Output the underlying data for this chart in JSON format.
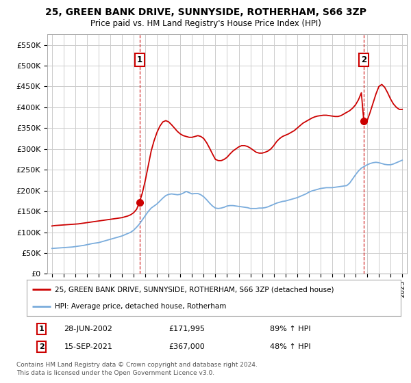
{
  "title": "25, GREEN BANK DRIVE, SUNNYSIDE, ROTHERHAM, S66 3ZP",
  "subtitle": "Price paid vs. HM Land Registry's House Price Index (HPI)",
  "ylabel_ticks": [
    "£0",
    "£50K",
    "£100K",
    "£150K",
    "£200K",
    "£250K",
    "£300K",
    "£350K",
    "£400K",
    "£450K",
    "£500K",
    "£550K"
  ],
  "ytick_values": [
    0,
    50000,
    100000,
    150000,
    200000,
    250000,
    300000,
    350000,
    400000,
    450000,
    500000,
    550000
  ],
  "ylim": [
    0,
    575000
  ],
  "xlim_start": 1994.6,
  "xlim_end": 2025.4,
  "legend_line1": "25, GREEN BANK DRIVE, SUNNYSIDE, ROTHERHAM, S66 3ZP (detached house)",
  "legend_line2": "HPI: Average price, detached house, Rotherham",
  "marker1_date": "28-JUN-2002",
  "marker1_price": "£171,995",
  "marker1_hpi": "89% ↑ HPI",
  "marker1_x": 2002.5,
  "marker1_y": 171995,
  "marker2_date": "15-SEP-2021",
  "marker2_price": "£367,000",
  "marker2_hpi": "48% ↑ HPI",
  "marker2_x": 2021.71,
  "marker2_y": 367000,
  "red_color": "#cc0000",
  "blue_color": "#7aacdc",
  "background_color": "#ffffff",
  "grid_color": "#cccccc",
  "footnote1": "Contains HM Land Registry data © Crown copyright and database right 2024.",
  "footnote2": "This data is licensed under the Open Government Licence v3.0.",
  "hpi_data": [
    [
      1995.0,
      61000
    ],
    [
      1995.25,
      61500
    ],
    [
      1995.5,
      62000
    ],
    [
      1995.75,
      62500
    ],
    [
      1996.0,
      63000
    ],
    [
      1996.25,
      63500
    ],
    [
      1996.5,
      64000
    ],
    [
      1996.75,
      64500
    ],
    [
      1997.0,
      65500
    ],
    [
      1997.25,
      66500
    ],
    [
      1997.5,
      67500
    ],
    [
      1997.75,
      68500
    ],
    [
      1998.0,
      70000
    ],
    [
      1998.25,
      71500
    ],
    [
      1998.5,
      73000
    ],
    [
      1998.75,
      74000
    ],
    [
      1999.0,
      75000
    ],
    [
      1999.25,
      77000
    ],
    [
      1999.5,
      79000
    ],
    [
      1999.75,
      81000
    ],
    [
      2000.0,
      83000
    ],
    [
      2000.25,
      85000
    ],
    [
      2000.5,
      87000
    ],
    [
      2000.75,
      89000
    ],
    [
      2001.0,
      91000
    ],
    [
      2001.25,
      94000
    ],
    [
      2001.5,
      97000
    ],
    [
      2001.75,
      100000
    ],
    [
      2002.0,
      105000
    ],
    [
      2002.25,
      112000
    ],
    [
      2002.5,
      120000
    ],
    [
      2002.75,
      130000
    ],
    [
      2003.0,
      140000
    ],
    [
      2003.25,
      150000
    ],
    [
      2003.5,
      158000
    ],
    [
      2003.75,
      163000
    ],
    [
      2004.0,
      168000
    ],
    [
      2004.25,
      175000
    ],
    [
      2004.5,
      182000
    ],
    [
      2004.75,
      188000
    ],
    [
      2005.0,
      191000
    ],
    [
      2005.25,
      192000
    ],
    [
      2005.5,
      191000
    ],
    [
      2005.75,
      190000
    ],
    [
      2006.0,
      191000
    ],
    [
      2006.25,
      194000
    ],
    [
      2006.5,
      198000
    ],
    [
      2006.75,
      195000
    ],
    [
      2007.0,
      192000
    ],
    [
      2007.25,
      193000
    ],
    [
      2007.5,
      193000
    ],
    [
      2007.75,
      190000
    ],
    [
      2008.0,
      185000
    ],
    [
      2008.25,
      178000
    ],
    [
      2008.5,
      170000
    ],
    [
      2008.75,
      163000
    ],
    [
      2009.0,
      158000
    ],
    [
      2009.25,
      157000
    ],
    [
      2009.5,
      158000
    ],
    [
      2009.75,
      160000
    ],
    [
      2010.0,
      163000
    ],
    [
      2010.25,
      164000
    ],
    [
      2010.5,
      164000
    ],
    [
      2010.75,
      163000
    ],
    [
      2011.0,
      162000
    ],
    [
      2011.25,
      161000
    ],
    [
      2011.5,
      160000
    ],
    [
      2011.75,
      159000
    ],
    [
      2012.0,
      157000
    ],
    [
      2012.25,
      157000
    ],
    [
      2012.5,
      157000
    ],
    [
      2012.75,
      158000
    ],
    [
      2013.0,
      158000
    ],
    [
      2013.25,
      159000
    ],
    [
      2013.5,
      161000
    ],
    [
      2013.75,
      164000
    ],
    [
      2014.0,
      167000
    ],
    [
      2014.25,
      170000
    ],
    [
      2014.5,
      172000
    ],
    [
      2014.75,
      174000
    ],
    [
      2015.0,
      175000
    ],
    [
      2015.25,
      177000
    ],
    [
      2015.5,
      179000
    ],
    [
      2015.75,
      181000
    ],
    [
      2016.0,
      183000
    ],
    [
      2016.25,
      186000
    ],
    [
      2016.5,
      189000
    ],
    [
      2016.75,
      192000
    ],
    [
      2017.0,
      196000
    ],
    [
      2017.25,
      199000
    ],
    [
      2017.5,
      201000
    ],
    [
      2017.75,
      203000
    ],
    [
      2018.0,
      205000
    ],
    [
      2018.25,
      206000
    ],
    [
      2018.5,
      207000
    ],
    [
      2018.75,
      207000
    ],
    [
      2019.0,
      207000
    ],
    [
      2019.25,
      208000
    ],
    [
      2019.5,
      209000
    ],
    [
      2019.75,
      210000
    ],
    [
      2020.0,
      211000
    ],
    [
      2020.25,
      212000
    ],
    [
      2020.5,
      218000
    ],
    [
      2020.75,
      228000
    ],
    [
      2021.0,
      238000
    ],
    [
      2021.25,
      247000
    ],
    [
      2021.5,
      254000
    ],
    [
      2021.75,
      258000
    ],
    [
      2022.0,
      262000
    ],
    [
      2022.25,
      265000
    ],
    [
      2022.5,
      267000
    ],
    [
      2022.75,
      268000
    ],
    [
      2023.0,
      267000
    ],
    [
      2023.25,
      265000
    ],
    [
      2023.5,
      263000
    ],
    [
      2023.75,
      262000
    ],
    [
      2024.0,
      262000
    ],
    [
      2024.25,
      264000
    ],
    [
      2024.5,
      267000
    ],
    [
      2024.75,
      270000
    ],
    [
      2025.0,
      273000
    ]
  ],
  "red_data": [
    [
      1995.0,
      115000
    ],
    [
      1995.25,
      116000
    ],
    [
      1995.5,
      116500
    ],
    [
      1995.75,
      117000
    ],
    [
      1996.0,
      117500
    ],
    [
      1996.25,
      118000
    ],
    [
      1996.5,
      118500
    ],
    [
      1996.75,
      119000
    ],
    [
      1997.0,
      119500
    ],
    [
      1997.25,
      120000
    ],
    [
      1997.5,
      121000
    ],
    [
      1997.75,
      122000
    ],
    [
      1998.0,
      123000
    ],
    [
      1998.25,
      124000
    ],
    [
      1998.5,
      125000
    ],
    [
      1998.75,
      126000
    ],
    [
      1999.0,
      127000
    ],
    [
      1999.25,
      128000
    ],
    [
      1999.5,
      129000
    ],
    [
      1999.75,
      130000
    ],
    [
      2000.0,
      131000
    ],
    [
      2000.25,
      132000
    ],
    [
      2000.5,
      133000
    ],
    [
      2000.75,
      134000
    ],
    [
      2001.0,
      135000
    ],
    [
      2001.25,
      137000
    ],
    [
      2001.5,
      139000
    ],
    [
      2001.75,
      142000
    ],
    [
      2002.0,
      147000
    ],
    [
      2002.25,
      155000
    ],
    [
      2002.5,
      171995
    ],
    [
      2002.75,
      195000
    ],
    [
      2003.0,
      225000
    ],
    [
      2003.25,
      260000
    ],
    [
      2003.5,
      295000
    ],
    [
      2003.75,
      320000
    ],
    [
      2004.0,
      340000
    ],
    [
      2004.25,
      355000
    ],
    [
      2004.5,
      365000
    ],
    [
      2004.75,
      368000
    ],
    [
      2005.0,
      365000
    ],
    [
      2005.25,
      358000
    ],
    [
      2005.5,
      350000
    ],
    [
      2005.75,
      342000
    ],
    [
      2006.0,
      336000
    ],
    [
      2006.25,
      332000
    ],
    [
      2006.5,
      330000
    ],
    [
      2006.75,
      328000
    ],
    [
      2007.0,
      328000
    ],
    [
      2007.25,
      330000
    ],
    [
      2007.5,
      332000
    ],
    [
      2007.75,
      330000
    ],
    [
      2008.0,
      325000
    ],
    [
      2008.25,
      315000
    ],
    [
      2008.5,
      302000
    ],
    [
      2008.75,
      288000
    ],
    [
      2009.0,
      275000
    ],
    [
      2009.25,
      272000
    ],
    [
      2009.5,
      272000
    ],
    [
      2009.75,
      275000
    ],
    [
      2010.0,
      280000
    ],
    [
      2010.25,
      288000
    ],
    [
      2010.5,
      295000
    ],
    [
      2010.75,
      300000
    ],
    [
      2011.0,
      305000
    ],
    [
      2011.25,
      308000
    ],
    [
      2011.5,
      308000
    ],
    [
      2011.75,
      306000
    ],
    [
      2012.0,
      302000
    ],
    [
      2012.25,
      297000
    ],
    [
      2012.5,
      292000
    ],
    [
      2012.75,
      290000
    ],
    [
      2013.0,
      290000
    ],
    [
      2013.25,
      292000
    ],
    [
      2013.5,
      295000
    ],
    [
      2013.75,
      300000
    ],
    [
      2014.0,
      308000
    ],
    [
      2014.25,
      318000
    ],
    [
      2014.5,
      325000
    ],
    [
      2014.75,
      330000
    ],
    [
      2015.0,
      333000
    ],
    [
      2015.25,
      336000
    ],
    [
      2015.5,
      340000
    ],
    [
      2015.75,
      344000
    ],
    [
      2016.0,
      350000
    ],
    [
      2016.25,
      356000
    ],
    [
      2016.5,
      362000
    ],
    [
      2016.75,
      366000
    ],
    [
      2017.0,
      370000
    ],
    [
      2017.25,
      374000
    ],
    [
      2017.5,
      377000
    ],
    [
      2017.75,
      379000
    ],
    [
      2018.0,
      380000
    ],
    [
      2018.25,
      381000
    ],
    [
      2018.5,
      381000
    ],
    [
      2018.75,
      380000
    ],
    [
      2019.0,
      379000
    ],
    [
      2019.25,
      378000
    ],
    [
      2019.5,
      378000
    ],
    [
      2019.75,
      380000
    ],
    [
      2020.0,
      384000
    ],
    [
      2020.25,
      388000
    ],
    [
      2020.5,
      392000
    ],
    [
      2020.75,
      398000
    ],
    [
      2021.0,
      406000
    ],
    [
      2021.25,
      418000
    ],
    [
      2021.5,
      435000
    ],
    [
      2021.71,
      367000
    ],
    [
      2021.75,
      362000
    ],
    [
      2022.0,
      368000
    ],
    [
      2022.25,
      388000
    ],
    [
      2022.5,
      410000
    ],
    [
      2022.75,
      432000
    ],
    [
      2023.0,
      450000
    ],
    [
      2023.25,
      455000
    ],
    [
      2023.5,
      448000
    ],
    [
      2023.75,
      435000
    ],
    [
      2024.0,
      420000
    ],
    [
      2024.25,
      408000
    ],
    [
      2024.5,
      400000
    ],
    [
      2024.75,
      395000
    ],
    [
      2025.0,
      395000
    ]
  ]
}
